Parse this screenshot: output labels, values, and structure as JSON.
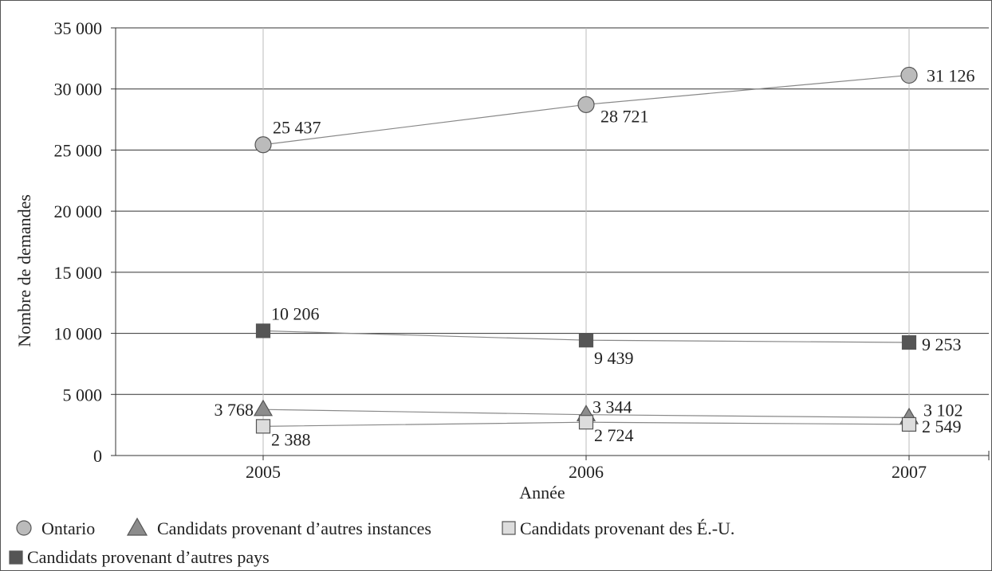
{
  "chart_data": {
    "type": "line",
    "categories": [
      "2005",
      "2006",
      "2007"
    ],
    "xlabel": "Année",
    "ylabel": "Nombre de demandes",
    "ylim": [
      0,
      35000
    ],
    "yticks": [
      0,
      5000,
      10000,
      15000,
      20000,
      25000,
      30000,
      35000
    ],
    "ytick_labels": [
      "0",
      "5 000",
      "10 000",
      "15 000",
      "20 000",
      "25 000",
      "30 000",
      "35 000"
    ],
    "grid": true,
    "legend_position": "bottom",
    "series": [
      {
        "name": "Ontario",
        "marker": "circle",
        "color": "#bbbbbb",
        "values": [
          25437,
          28721,
          31126
        ],
        "labels": [
          "25 437",
          "28 721",
          "31 126"
        ]
      },
      {
        "name": "Candidats provenant d’autres instances",
        "marker": "triangle",
        "color": "#8c8c8c",
        "values": [
          3768,
          3344,
          3102
        ],
        "labels": [
          "3 768",
          "3 344",
          "3 102"
        ]
      },
      {
        "name": "Candidats provenant des É.-U.",
        "marker": "square",
        "color": "#dddddd",
        "values": [
          2388,
          2724,
          2549
        ],
        "labels": [
          "2 388",
          "2 724",
          "2 549"
        ]
      },
      {
        "name": "Candidats provenant d’autres pays",
        "marker": "square",
        "color": "#555555",
        "values": [
          10206,
          9439,
          9253
        ],
        "labels": [
          "10 206",
          "9 439",
          "9 253"
        ]
      }
    ]
  }
}
